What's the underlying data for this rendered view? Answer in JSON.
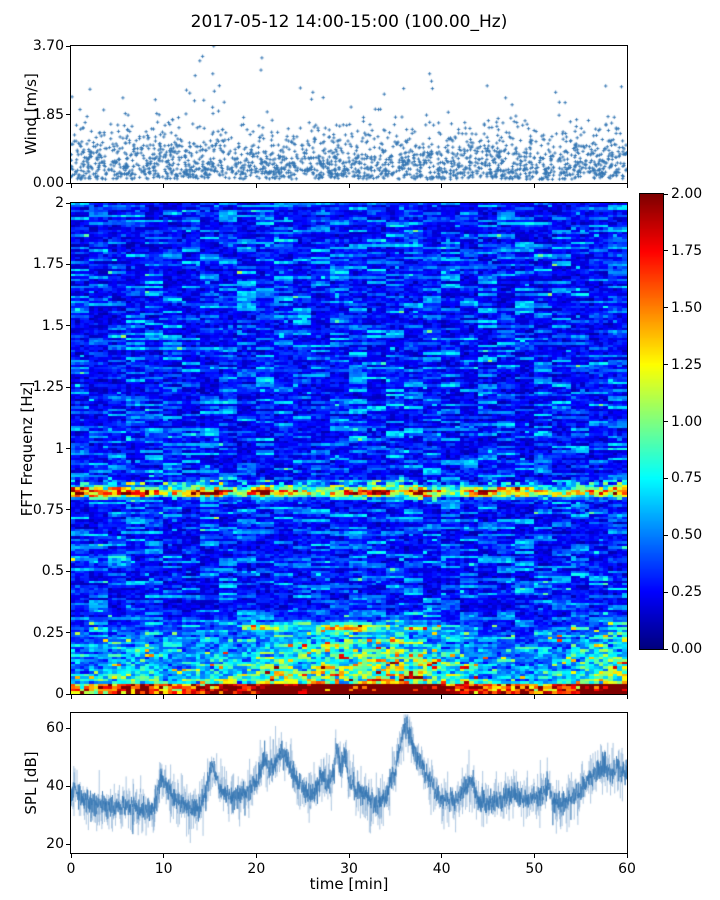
{
  "title": "2017-05-12 14:00-15:00 (100.00_Hz)",
  "xlabel": "time [min]",
  "colors": {
    "series_blue": "#3577b4",
    "axis": "#000000",
    "background": "#ffffff"
  },
  "chart_data": [
    {
      "id": "wind",
      "type": "scatter",
      "ylabel": "Wind [m/s]",
      "marker": "+",
      "xlim": [
        0,
        60
      ],
      "ylim": [
        0,
        3.7
      ],
      "yticks": [
        {
          "v": 0,
          "label": "0.00"
        },
        {
          "v": 1.85,
          "label": "1.85"
        },
        {
          "v": 3.7,
          "label": "3.70"
        }
      ],
      "xticks": [
        0,
        10,
        20,
        30,
        40,
        50,
        60
      ],
      "point_count": 2100,
      "seed": 77,
      "distribution": {
        "type": "half-normal",
        "sigma_main": 0.6,
        "sigma_tail": 1.0,
        "tail_fraction": 0.15,
        "offset": 0.1,
        "cap": 2.75
      },
      "envelope": [
        [
          0,
          1
        ],
        [
          5,
          1.05
        ],
        [
          9,
          1.1
        ],
        [
          12,
          1.05
        ],
        [
          15,
          1.2
        ],
        [
          18,
          1.0
        ],
        [
          21,
          1.1
        ],
        [
          25,
          1.0
        ],
        [
          29,
          1.05
        ],
        [
          33,
          1.1
        ],
        [
          36,
          1.05
        ],
        [
          40,
          1.0
        ],
        [
          44,
          1.0
        ],
        [
          47,
          1.05
        ],
        [
          50,
          0.95
        ],
        [
          54,
          1.0
        ],
        [
          57,
          1.1
        ],
        [
          60,
          1.05
        ]
      ],
      "high_points": [
        [
          14.2,
          3.42
        ],
        [
          15.4,
          3.7
        ],
        [
          13.9,
          3.3
        ],
        [
          13.4,
          2.9
        ],
        [
          15.3,
          2.95
        ],
        [
          20.6,
          3.38
        ],
        [
          20.5,
          3.05
        ],
        [
          26.1,
          2.45
        ],
        [
          33.8,
          2.4
        ],
        [
          35.9,
          2.55
        ],
        [
          38.7,
          2.95
        ],
        [
          38.9,
          2.75
        ],
        [
          39.0,
          2.55
        ],
        [
          46.9,
          2.3
        ],
        [
          52.3,
          2.45
        ],
        [
          57.7,
          2.62
        ],
        [
          59.4,
          2.6
        ],
        [
          5.6,
          2.3
        ],
        [
          9.1,
          2.25
        ]
      ]
    },
    {
      "id": "spectrogram",
      "type": "heatmap",
      "ylabel": "FFT Frequenz [Hz]",
      "xlim": [
        0,
        60
      ],
      "ylim": [
        0,
        2
      ],
      "vmin": 0,
      "vmax": 2,
      "colormap": "jet",
      "yticks": [
        {
          "v": 0,
          "label": "0"
        },
        {
          "v": 0.25,
          "label": "0.25"
        },
        {
          "v": 0.5,
          "label": "0.5"
        },
        {
          "v": 0.75,
          "label": "0.75"
        },
        {
          "v": 1,
          "label": "1"
        },
        {
          "v": 1.25,
          "label": "1.25"
        },
        {
          "v": 1.5,
          "label": "1.5"
        },
        {
          "v": 1.75,
          "label": "1.75"
        },
        {
          "v": 2,
          "label": "2"
        }
      ],
      "xticks": [
        0,
        10,
        20,
        30,
        40,
        50,
        60
      ],
      "grid": {
        "cols": 120,
        "rows": 200
      },
      "seed": 1234,
      "features": {
        "noise_base": 0.07,
        "band_main": {
          "freq": 0.82,
          "width": 0.013,
          "profile": [
            [
              0,
              1.9
            ],
            [
              2,
              1.6
            ],
            [
              4,
              1.3
            ],
            [
              6,
              1.35
            ],
            [
              8,
              1.5
            ],
            [
              10,
              0.8
            ],
            [
              12,
              1.2
            ],
            [
              14,
              1.6
            ],
            [
              16,
              1.7
            ],
            [
              18,
              0.7
            ],
            [
              20,
              1.75
            ],
            [
              22,
              1.5
            ],
            [
              24,
              1.3
            ],
            [
              26,
              0.8
            ],
            [
              28,
              1.1
            ],
            [
              30,
              1.2
            ],
            [
              32,
              1.6
            ],
            [
              33,
              1.9
            ],
            [
              35,
              0.9
            ],
            [
              37,
              1.4
            ],
            [
              38,
              1.7
            ],
            [
              40,
              0.8
            ],
            [
              42,
              0.9
            ],
            [
              44,
              1.35
            ],
            [
              46,
              1.3
            ],
            [
              48,
              1.1
            ],
            [
              50,
              1.0
            ],
            [
              52,
              0.8
            ],
            [
              54,
              0.9
            ],
            [
              56,
              1.15
            ],
            [
              58,
              1.3
            ],
            [
              60,
              1.8
            ]
          ]
        },
        "band_upper": {
          "freq": 0.855,
          "width": 0.012,
          "scale": 0.55
        },
        "band_mid": {
          "freq": 0.27,
          "width": 0.01,
          "profile": [
            [
              0,
              0
            ],
            [
              18,
              0
            ],
            [
              20,
              0.9
            ],
            [
              23,
              0.5
            ],
            [
              26,
              0.3
            ],
            [
              28,
              1.0
            ],
            [
              31,
              1.1
            ],
            [
              33,
              0.5
            ],
            [
              35,
              0.4
            ],
            [
              40,
              0.3
            ],
            [
              45,
              0
            ],
            [
              60,
              0
            ]
          ]
        },
        "band_low_left": {
          "freq": 0.54,
          "width": 0.012,
          "t_end": 7,
          "scale": 0.5
        },
        "low_activity": {
          "f_cut": 0.34,
          "profile": [
            [
              0,
              0.45
            ],
            [
              3,
              0.4
            ],
            [
              6,
              0.85
            ],
            [
              8,
              0.95
            ],
            [
              10,
              0.6
            ],
            [
              13,
              0.55
            ],
            [
              15,
              0.85
            ],
            [
              17,
              0.95
            ],
            [
              19,
              0.75
            ],
            [
              21,
              1.1
            ],
            [
              23,
              1.2
            ],
            [
              25,
              1.0
            ],
            [
              27,
              1.25
            ],
            [
              29,
              1.4
            ],
            [
              31,
              1.1
            ],
            [
              33,
              1.3
            ],
            [
              35,
              1.5
            ],
            [
              37,
              1.4
            ],
            [
              39,
              1.1
            ],
            [
              41,
              0.75
            ],
            [
              43,
              0.7
            ],
            [
              45,
              0.5
            ],
            [
              47,
              0.5
            ],
            [
              50,
              0.5
            ],
            [
              52,
              0.55
            ],
            [
              54,
              0.7
            ],
            [
              56,
              1.0
            ],
            [
              58,
              1.2
            ],
            [
              60,
              1.25
            ]
          ]
        },
        "bottom_band": {
          "f_cut": 0.045
        }
      },
      "colorbar": {
        "vmin": 0,
        "vmax": 2,
        "ticks": [
          "0.00",
          "0.25",
          "0.50",
          "0.75",
          "1.00",
          "1.25",
          "1.50",
          "1.75",
          "2.00"
        ]
      }
    },
    {
      "id": "spl",
      "type": "line",
      "ylabel": "SPL [dB]",
      "xlim": [
        0,
        60
      ],
      "ylim": [
        17,
        65.2
      ],
      "yticks": [
        {
          "v": 20,
          "label": "20"
        },
        {
          "v": 40,
          "label": "40"
        },
        {
          "v": 60,
          "label": "60"
        }
      ],
      "xticks": [
        0,
        10,
        20,
        30,
        40,
        50,
        60
      ],
      "xtick_labels": [
        "0",
        "10",
        "20",
        "30",
        "40",
        "50",
        "60"
      ],
      "seed": 555,
      "noise_sigma_core": 1.9,
      "noise_sigma_fringe": 4.2,
      "baseline": [
        [
          0,
          38
        ],
        [
          0.5,
          40
        ],
        [
          1,
          36
        ],
        [
          2,
          34
        ],
        [
          3,
          33
        ],
        [
          4,
          32.5
        ],
        [
          5,
          33
        ],
        [
          6,
          33.5
        ],
        [
          7,
          32
        ],
        [
          8,
          31.5
        ],
        [
          9,
          33
        ],
        [
          9.7,
          43
        ],
        [
          10.3,
          40
        ],
        [
          11,
          36
        ],
        [
          12,
          34
        ],
        [
          13,
          32
        ],
        [
          14,
          33
        ],
        [
          15,
          44
        ],
        [
          15.5,
          46
        ],
        [
          16,
          39
        ],
        [
          17,
          37
        ],
        [
          18,
          36
        ],
        [
          19,
          39
        ],
        [
          20,
          41
        ],
        [
          20.8,
          49
        ],
        [
          21.5,
          46
        ],
        [
          22,
          47
        ],
        [
          22.7,
          52
        ],
        [
          23.3,
          49
        ],
        [
          24,
          44
        ],
        [
          25,
          39
        ],
        [
          26,
          37
        ],
        [
          27,
          44
        ],
        [
          27.5,
          41
        ],
        [
          28,
          40
        ],
        [
          28.7,
          52
        ],
        [
          29.2,
          46
        ],
        [
          29.6,
          51
        ],
        [
          30,
          42
        ],
        [
          31,
          38
        ],
        [
          32,
          36
        ],
        [
          33,
          34
        ],
        [
          34,
          37
        ],
        [
          35,
          45
        ],
        [
          35.8,
          58
        ],
        [
          36.2,
          61
        ],
        [
          36.6,
          57
        ],
        [
          37,
          52
        ],
        [
          37.5,
          49
        ],
        [
          38,
          46
        ],
        [
          39,
          40
        ],
        [
          40,
          35
        ],
        [
          41,
          35
        ],
        [
          42,
          36
        ],
        [
          43,
          42
        ],
        [
          43.5,
          39
        ],
        [
          44,
          35
        ],
        [
          45,
          34
        ],
        [
          46,
          35
        ],
        [
          47,
          36
        ],
        [
          48,
          38
        ],
        [
          48.5,
          36
        ],
        [
          49,
          35
        ],
        [
          50,
          36
        ],
        [
          51,
          38
        ],
        [
          51.5,
          40
        ],
        [
          52,
          35
        ],
        [
          53,
          34
        ],
        [
          54,
          36
        ],
        [
          55,
          39
        ],
        [
          56,
          43
        ],
        [
          57,
          45
        ],
        [
          57.5,
          47
        ],
        [
          58,
          45
        ],
        [
          59,
          46
        ],
        [
          60,
          44
        ]
      ]
    }
  ]
}
